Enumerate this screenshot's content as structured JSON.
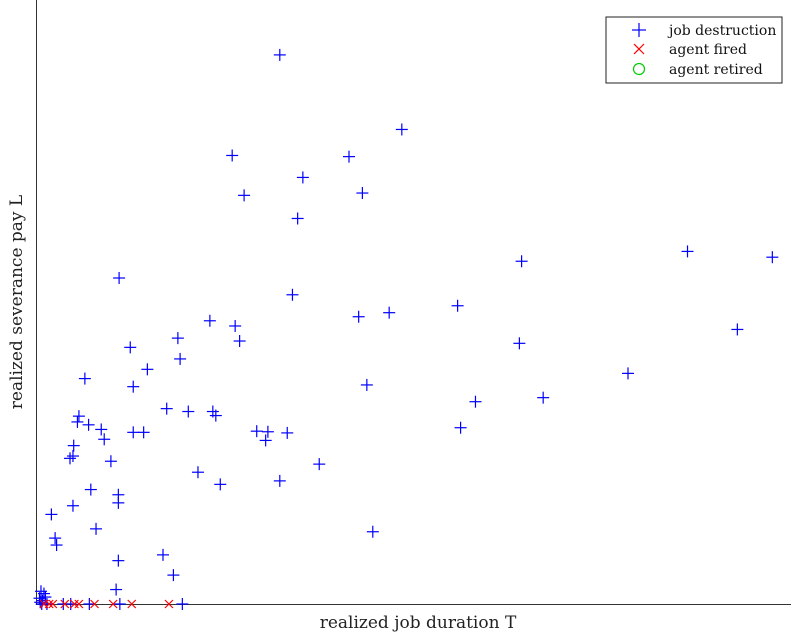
{
  "chart_data": {
    "type": "scatter",
    "xlabel": "realized job duration T",
    "ylabel": "realized severance pay L",
    "xlim": [
      0,
      100
    ],
    "ylim": [
      0,
      100
    ],
    "axis_ticks": false,
    "grid": false,
    "legend_position": "top-right",
    "series": [
      {
        "name": "job destruction",
        "marker": "+",
        "color": "#0000ff",
        "points": [
          [
            32.5,
            95.0
          ],
          [
            48.9,
            82.1
          ],
          [
            26.1,
            77.6
          ],
          [
            41.8,
            77.4
          ],
          [
            35.6,
            73.8
          ],
          [
            27.7,
            70.7
          ],
          [
            43.6,
            71.1
          ],
          [
            34.9,
            66.7
          ],
          [
            10.9,
            56.4
          ],
          [
            65.0,
            59.3
          ],
          [
            87.3,
            61.0
          ],
          [
            98.7,
            60.0
          ],
          [
            34.2,
            53.5
          ],
          [
            56.4,
            51.6
          ],
          [
            47.2,
            50.4
          ],
          [
            43.1,
            49.7
          ],
          [
            23.1,
            49.0
          ],
          [
            26.5,
            48.1
          ],
          [
            18.8,
            46.0
          ],
          [
            27.1,
            45.5
          ],
          [
            12.4,
            44.4
          ],
          [
            64.7,
            45.1
          ],
          [
            94.0,
            47.5
          ],
          [
            19.1,
            42.4
          ],
          [
            14.7,
            40.6
          ],
          [
            6.3,
            39.0
          ],
          [
            12.8,
            37.6
          ],
          [
            79.3,
            39.9
          ],
          [
            44.2,
            37.9
          ],
          [
            58.8,
            35.0
          ],
          [
            67.9,
            35.7
          ],
          [
            17.3,
            33.8
          ],
          [
            20.2,
            33.3
          ],
          [
            23.5,
            33.3
          ],
          [
            23.9,
            32.6
          ],
          [
            5.5,
            32.5
          ],
          [
            5.3,
            31.5
          ],
          [
            6.8,
            31.0
          ],
          [
            8.5,
            30.2
          ],
          [
            12.8,
            29.7
          ],
          [
            14.2,
            29.7
          ],
          [
            29.4,
            29.9
          ],
          [
            30.9,
            29.8
          ],
          [
            33.5,
            29.6
          ],
          [
            56.8,
            30.5
          ],
          [
            8.9,
            28.5
          ],
          [
            30.6,
            28.3
          ],
          [
            4.8,
            27.4
          ],
          [
            4.7,
            25.6
          ],
          [
            9.8,
            24.7
          ],
          [
            4.3,
            25.2
          ],
          [
            37.8,
            24.2
          ],
          [
            21.5,
            22.8
          ],
          [
            24.5,
            20.7
          ],
          [
            32.5,
            21.3
          ],
          [
            7.1,
            19.8
          ],
          [
            10.8,
            18.9
          ],
          [
            4.7,
            17.0
          ],
          [
            10.8,
            17.5
          ],
          [
            1.8,
            15.5
          ],
          [
            7.8,
            13.0
          ],
          [
            2.3,
            11.4
          ],
          [
            45.0,
            12.5
          ],
          [
            2.5,
            10.2
          ],
          [
            16.8,
            8.5
          ],
          [
            10.8,
            7.5
          ],
          [
            18.2,
            5.0
          ],
          [
            10.5,
            2.5
          ],
          [
            0.4,
            2.2
          ],
          [
            0.8,
            1.8
          ],
          [
            1.0,
            1.2
          ],
          [
            0.2,
            1.0
          ],
          [
            0.6,
            0.6
          ],
          [
            0.3,
            0.3
          ],
          [
            1.2,
            0.0
          ],
          [
            0.5,
            0.0
          ],
          [
            3.4,
            0.0
          ],
          [
            4.4,
            0.0
          ],
          [
            6.9,
            0.0
          ],
          [
            11.0,
            0.0
          ],
          [
            19.4,
            0.0
          ]
        ]
      },
      {
        "name": "agent fired",
        "marker": "x",
        "color": "#ff0000",
        "points": [
          [
            0.8,
            0.0
          ],
          [
            1.5,
            0.0
          ],
          [
            2.0,
            0.0
          ],
          [
            3.6,
            0.0
          ],
          [
            4.9,
            0.0
          ],
          [
            5.5,
            0.0
          ],
          [
            7.6,
            0.0
          ],
          [
            10.1,
            0.0
          ],
          [
            12.6,
            0.0
          ],
          [
            17.6,
            0.0
          ]
        ]
      },
      {
        "name": "agent retired",
        "marker": "o",
        "color": "#00cc00",
        "points": []
      }
    ]
  }
}
